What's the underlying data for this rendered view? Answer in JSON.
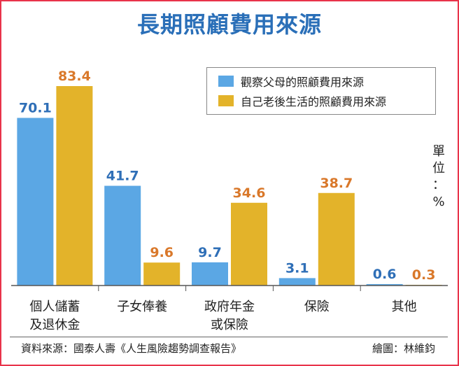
{
  "title": "長期照顧費用來源",
  "unit": "單位：%",
  "source": "資料來源：國泰人壽《人生風險趨勢調查報告》",
  "credit": "繪圖：林維鈞",
  "colors": {
    "series1": "#5ba7e4",
    "series2": "#e3b32a",
    "label1": "#2f6fb7",
    "label2": "#d9782a",
    "border": "#e8334a"
  },
  "chart_data": {
    "type": "bar",
    "title": "長期照顧費用來源",
    "categories": [
      "個人儲蓄\n及退休金",
      "子女俸養",
      "政府年金\n或保險",
      "保險",
      "其他"
    ],
    "series": [
      {
        "name": "觀察父母的照顧費用來源",
        "values": [
          70.1,
          41.7,
          9.7,
          3.1,
          0.6
        ]
      },
      {
        "name": "自己老後生活的照顧費用來源",
        "values": [
          83.4,
          9.6,
          34.6,
          38.7,
          0.3
        ]
      }
    ],
    "ylim": [
      0,
      83.4
    ],
    "grid": false,
    "legend_position": "top-right"
  }
}
